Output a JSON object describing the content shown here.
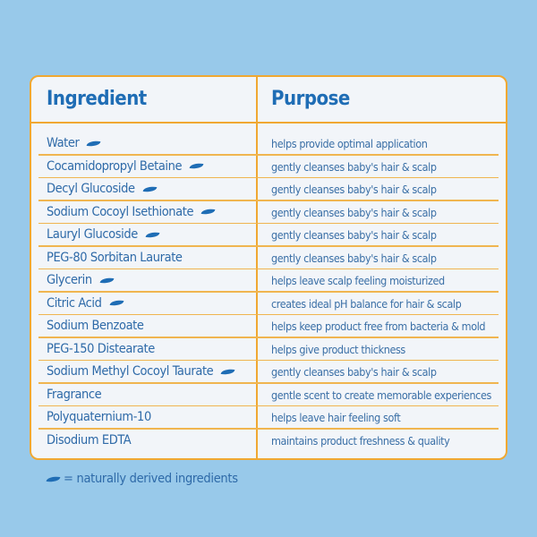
{
  "header": {
    "ingredient": "Ingredient",
    "purpose": "Purpose"
  },
  "colors": {
    "background": "#98c9ea",
    "card": "#f2f5f9",
    "border": "#f0a832",
    "text": "#1f6db5"
  },
  "rows": [
    {
      "ingredient": "Water",
      "natural": true,
      "purpose": "helps provide optimal application"
    },
    {
      "ingredient": "Cocamidopropyl Betaine",
      "natural": true,
      "purpose": "gently cleanses baby's hair & scalp"
    },
    {
      "ingredient": "Decyl Glucoside",
      "natural": true,
      "purpose": "gently cleanses baby's hair & scalp"
    },
    {
      "ingredient": "Sodium Cocoyl Isethionate",
      "natural": true,
      "purpose": "gently cleanses baby's hair & scalp"
    },
    {
      "ingredient": "Lauryl Glucoside",
      "natural": true,
      "purpose": "gently cleanses baby's hair & scalp"
    },
    {
      "ingredient": "PEG-80 Sorbitan Laurate",
      "natural": false,
      "purpose": "gently cleanses baby's hair & scalp"
    },
    {
      "ingredient": "Glycerin",
      "natural": true,
      "purpose": "helps leave scalp feeling moisturized"
    },
    {
      "ingredient": "Citric Acid",
      "natural": true,
      "purpose": "creates ideal pH balance for hair & scalp"
    },
    {
      "ingredient": "Sodium Benzoate",
      "natural": false,
      "purpose": "helps keep product free from bacteria & mold"
    },
    {
      "ingredient": "PEG-150 Distearate",
      "natural": false,
      "purpose": "helps give product thickness"
    },
    {
      "ingredient": "Sodium Methyl Cocoyl Taurate",
      "natural": true,
      "purpose": "gently cleanses baby's hair & scalp"
    },
    {
      "ingredient": "Fragrance",
      "natural": false,
      "purpose": "gentle scent to create memorable experiences"
    },
    {
      "ingredient": "Polyquaternium-10",
      "natural": false,
      "purpose": "helps leave hair feeling soft"
    },
    {
      "ingredient": "Disodium EDTA",
      "natural": false,
      "purpose": "maintains product freshness & quality"
    }
  ],
  "legend": {
    "icon": "leaf-icon",
    "text": "= naturally derived ingredients"
  }
}
